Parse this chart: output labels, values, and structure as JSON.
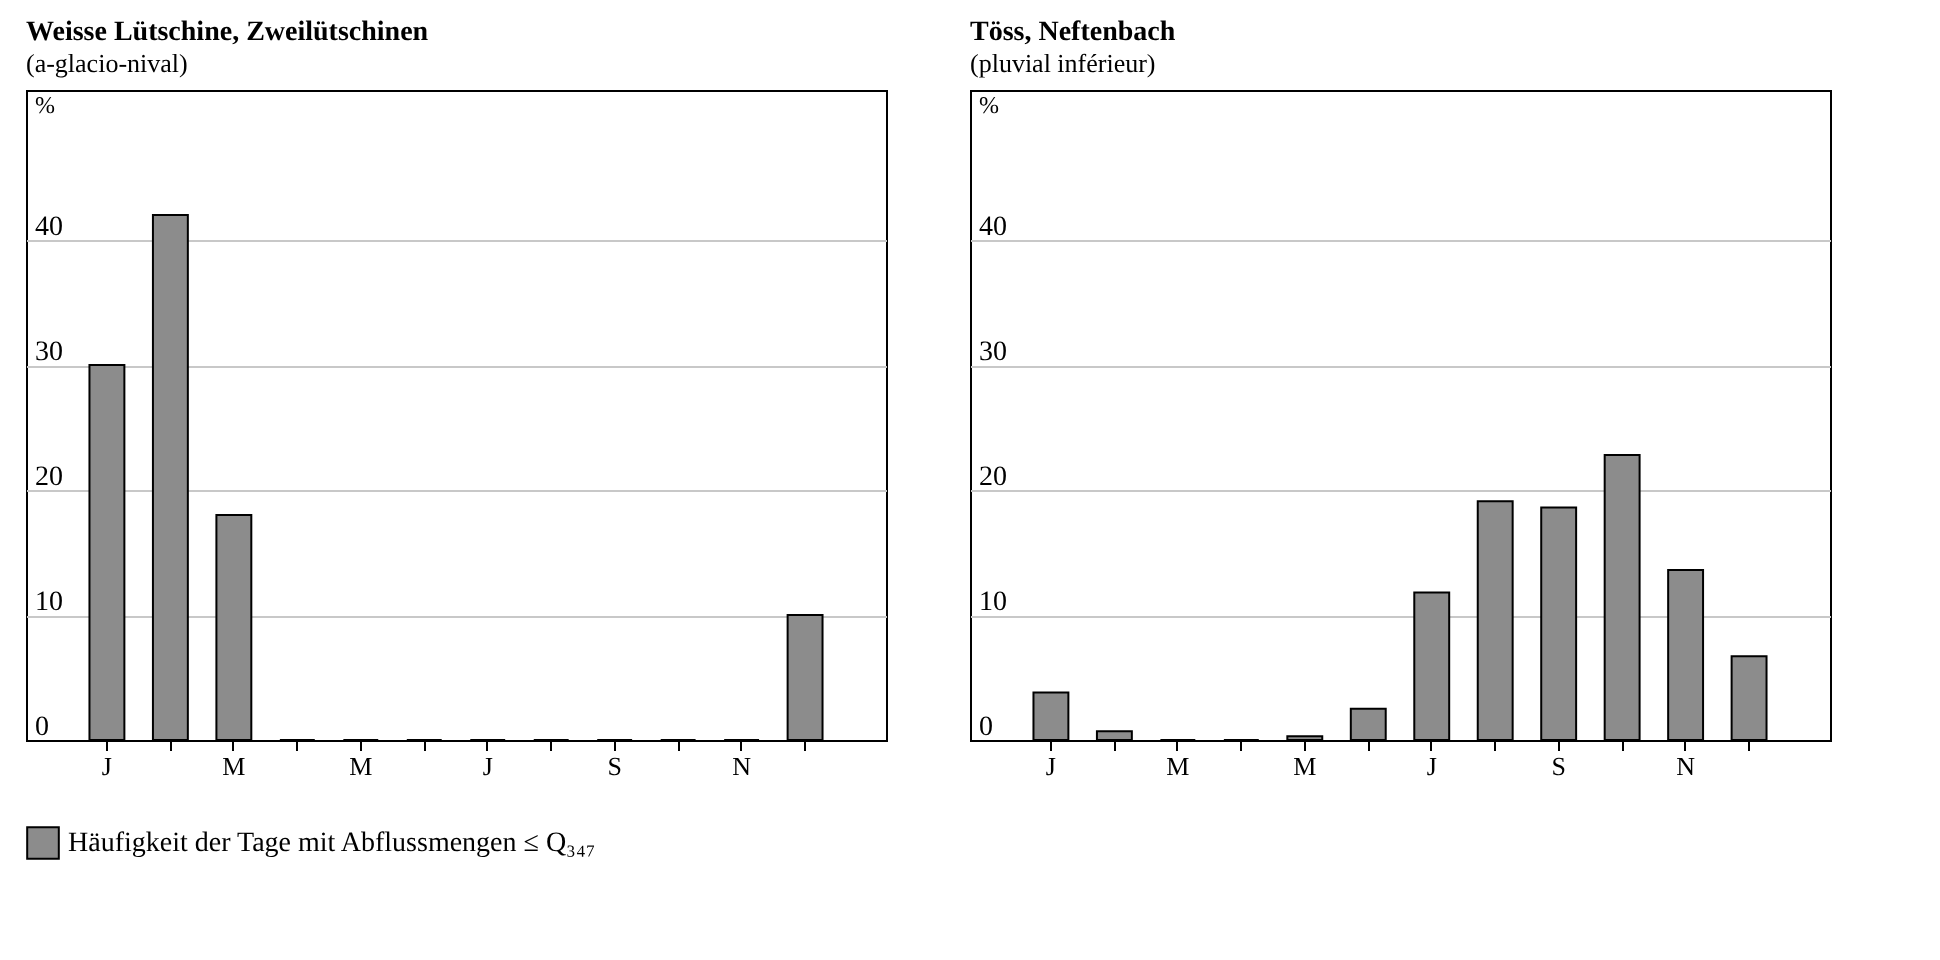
{
  "chart_data": [
    {
      "type": "bar",
      "title": "Weisse Lütschine, Zweilütschinen",
      "subtitle": "(a-glacio-nival)",
      "ylabel": "%",
      "categories": [
        "J",
        null,
        "M",
        null,
        "M",
        null,
        "J",
        null,
        "S",
        null,
        "N",
        null
      ],
      "series": [
        {
          "name": "Häufigkeit der Tage mit Abflussmengen ≤ Q₃₄₇",
          "color": "#8c8c8c",
          "values": [
            30,
            42,
            18,
            0,
            0,
            0,
            0,
            0,
            0,
            0,
            0,
            10
          ]
        }
      ],
      "ylim": [
        0,
        52
      ],
      "yticks": [
        0,
        10,
        20,
        30,
        40
      ],
      "grid": "y",
      "legend": "bottom"
    },
    {
      "type": "bar",
      "title": "Töss, Neftenbach",
      "subtitle": "(pluvial inférieur)",
      "ylabel": "%",
      "categories": [
        "J",
        null,
        "M",
        null,
        "M",
        null,
        "J",
        null,
        "S",
        null,
        "N",
        null
      ],
      "series": [
        {
          "color": "#8c8c8c",
          "values": [
            3.8,
            0.7,
            0,
            0,
            0.3,
            2.5,
            11.8,
            19.1,
            18.6,
            22.8,
            13.6,
            6.7
          ]
        }
      ],
      "ylim": [
        0,
        52
      ],
      "yticks": [
        0,
        10,
        20,
        30,
        40
      ],
      "grid": "y"
    }
  ]
}
